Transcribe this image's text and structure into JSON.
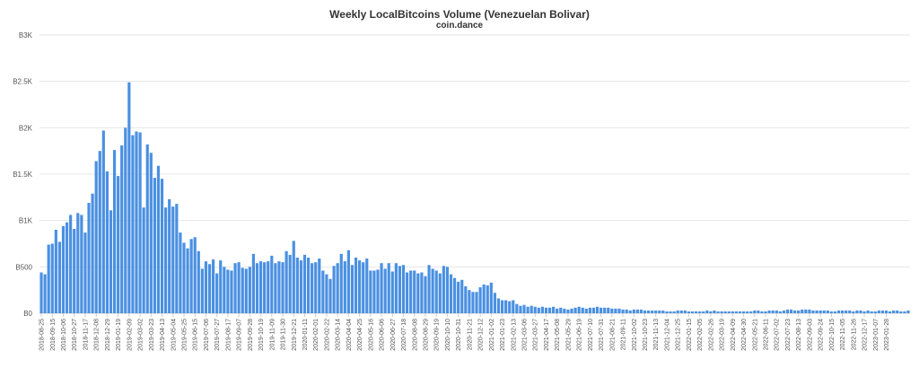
{
  "chart_data": {
    "type": "bar",
    "title": "Weekly LocalBitcoins Volume (Venezuelan Bolivar)",
    "subtitle": "coin.dance",
    "xlabel": "",
    "ylabel": "",
    "ylim": [
      0,
      3000
    ],
    "yticks": [
      {
        "value": 0,
        "label": "B0"
      },
      {
        "value": 500,
        "label": "B500"
      },
      {
        "value": 1000,
        "label": "B1K"
      },
      {
        "value": 1500,
        "label": "B1.5K"
      },
      {
        "value": 2000,
        "label": "B2K"
      },
      {
        "value": 2500,
        "label": "B2.5K"
      },
      {
        "value": 3000,
        "label": "B3K"
      }
    ],
    "xtick_labels": [
      "2018-08-25",
      "2018-09-15",
      "2018-10-06",
      "2018-10-27",
      "2018-11-17",
      "2018-12-08",
      "2018-12-29",
      "2019-01-19",
      "2019-02-09",
      "2019-03-02",
      "2019-03-23",
      "2019-04-13",
      "2019-05-04",
      "2019-05-25",
      "2019-06-15",
      "2019-07-06",
      "2019-07-27",
      "2019-08-17",
      "2019-09-07",
      "2019-09-28",
      "2019-10-19",
      "2019-11-09",
      "2019-11-30",
      "2019-12-21",
      "2020-01-11",
      "2020-02-01",
      "2020-02-22",
      "2020-03-14",
      "2020-04-04",
      "2020-04-25",
      "2020-05-16",
      "2020-06-06",
      "2020-06-27",
      "2020-07-18",
      "2020-08-08",
      "2020-08-29",
      "2020-09-19",
      "2020-10-10",
      "2020-10-31",
      "2020-11-21",
      "2020-12-12",
      "2021-01-02",
      "2021-01-23",
      "2021-02-13",
      "2021-03-06",
      "2021-03-27",
      "2021-04-17",
      "2021-05-08",
      "2021-05-29",
      "2021-06-19",
      "2021-07-10",
      "2021-07-31",
      "2021-08-21",
      "2021-09-11",
      "2021-10-02",
      "2021-10-23",
      "2021-11-13",
      "2021-12-04",
      "2021-12-25",
      "2022-01-15",
      "2022-02-05",
      "2022-02-26",
      "2022-03-19",
      "2022-04-09",
      "2022-04-30",
      "2022-05-21",
      "2022-06-11",
      "2022-07-02",
      "2022-07-23",
      "2022-08-13",
      "2022-09-03",
      "2022-09-24",
      "2022-10-15",
      "2022-11-05",
      "2022-11-26",
      "2022-12-17",
      "2023-01-07",
      "2023-01-28"
    ],
    "values": [
      440,
      420,
      740,
      750,
      900,
      770,
      940,
      980,
      1060,
      910,
      1080,
      1060,
      870,
      1190,
      1290,
      1640,
      1750,
      1970,
      1530,
      1110,
      1760,
      1480,
      1810,
      2000,
      2490,
      1920,
      1960,
      1950,
      1140,
      1820,
      1730,
      1460,
      1590,
      1450,
      1140,
      1230,
      1150,
      1180,
      870,
      760,
      700,
      800,
      820,
      670,
      480,
      560,
      530,
      580,
      430,
      570,
      500,
      470,
      460,
      540,
      550,
      490,
      480,
      500,
      640,
      540,
      560,
      550,
      560,
      620,
      540,
      560,
      550,
      670,
      630,
      780,
      600,
      570,
      630,
      600,
      540,
      550,
      590,
      460,
      420,
      370,
      510,
      540,
      640,
      560,
      680,
      520,
      600,
      570,
      550,
      590,
      460,
      460,
      470,
      540,
      480,
      540,
      450,
      540,
      510,
      520,
      440,
      460,
      460,
      430,
      440,
      400,
      520,
      480,
      460,
      430,
      510,
      500,
      420,
      380,
      340,
      360,
      290,
      250,
      230,
      230,
      280,
      310,
      300,
      330,
      220,
      160,
      140,
      140,
      130,
      140,
      100,
      80,
      90,
      70,
      80,
      70,
      60,
      70,
      60,
      60,
      70,
      50,
      60,
      50,
      40,
      50,
      60,
      70,
      60,
      50,
      60,
      60,
      70,
      60,
      60,
      60,
      50,
      50,
      50,
      40,
      40,
      30,
      40,
      40,
      40,
      30,
      30,
      30,
      30,
      30,
      30,
      20,
      20,
      20,
      30,
      30,
      30,
      20,
      20,
      20,
      20,
      20,
      30,
      20,
      30,
      20,
      20,
      20,
      20,
      20,
      20,
      20,
      20,
      20,
      20,
      30,
      30,
      20,
      20,
      30,
      30,
      30,
      20,
      30,
      40,
      40,
      30,
      30,
      40,
      40,
      40,
      30,
      30,
      30,
      30,
      30,
      20,
      20,
      30,
      30,
      30,
      30,
      20,
      30,
      30,
      20,
      30,
      20,
      20,
      30,
      30,
      30,
      20,
      30,
      30,
      20,
      20,
      30
    ]
  },
  "colors": {
    "bar": "#4a90e2",
    "grid": "#e6e6e6",
    "axis_text": "#555555",
    "title": "#333333"
  }
}
